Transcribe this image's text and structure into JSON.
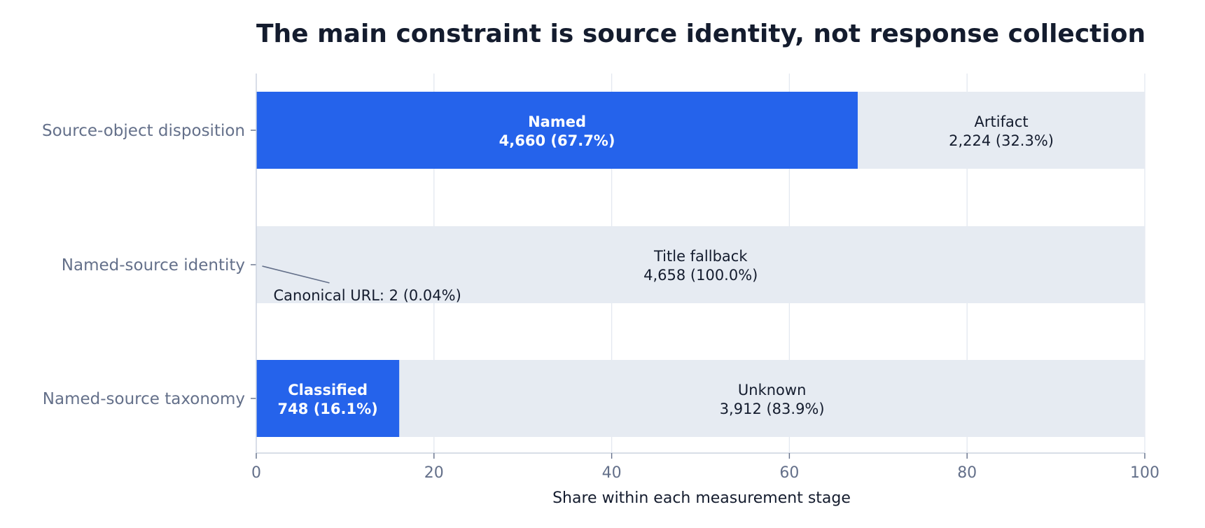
{
  "chart_data": {
    "type": "bar",
    "orientation": "horizontal",
    "stacked": true,
    "title": "The main constraint is source identity, not response collection",
    "xlabel": "Share within each measurement stage",
    "ylabel": "",
    "xlim": [
      0,
      100
    ],
    "xticks": [
      0,
      20,
      40,
      60,
      80,
      100
    ],
    "grid": "vertical",
    "legend": "none",
    "colors": {
      "primary": "#2563eb",
      "secondary": "#e6ebf2",
      "gridline": "#e3e8f0",
      "axis": "#cbd3df",
      "label_dark": "#141c2e",
      "label_light": "#ffffff",
      "muted": "#64708a"
    },
    "categories": [
      "Source-object disposition",
      "Named-source identity",
      "Named-source taxonomy"
    ],
    "bars": [
      {
        "category": "Source-object disposition",
        "segments": [
          {
            "name": "Named",
            "value": 67.7,
            "count": "4,660",
            "label": "4,660 (67.7%)",
            "style": "primary"
          },
          {
            "name": "Artifact",
            "value": 32.3,
            "count": "2,224",
            "label": "2,224 (32.3%)",
            "style": "secondary"
          }
        ]
      },
      {
        "category": "Named-source identity",
        "segments": [
          {
            "name": "Canonical URL",
            "value": 0.04,
            "count": "2",
            "label": "",
            "style": "primary"
          },
          {
            "name": "Title fallback",
            "value": 99.96,
            "count": "4,658",
            "label": "4,658 (100.0%)",
            "style": "secondary"
          }
        ]
      },
      {
        "category": "Named-source taxonomy",
        "segments": [
          {
            "name": "Classified",
            "value": 16.1,
            "count": "748",
            "label": "748 (16.1%)",
            "style": "primary"
          },
          {
            "name": "Unknown",
            "value": 83.9,
            "count": "3,912",
            "label": "3,912 (83.9%)",
            "style": "secondary"
          }
        ]
      }
    ],
    "annotations": [
      {
        "text": "Canonical URL: 2 (0.04%)",
        "category": "Named-source identity",
        "x": 0.04
      }
    ]
  }
}
